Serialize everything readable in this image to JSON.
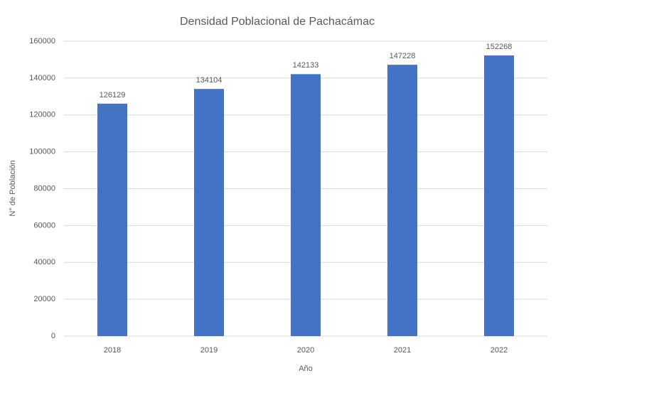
{
  "chart_data": {
    "type": "bar",
    "title": "Densidad Poblacional de Pachacámac",
    "x_label": "Año",
    "y_label": "N° de Población",
    "categories": [
      "2018",
      "2019",
      "2020",
      "2021",
      "2022"
    ],
    "values": [
      126129,
      134104,
      142133,
      147228,
      152268
    ],
    "color": "#4472c4",
    "ylim": [
      0,
      160000
    ],
    "yticks": [
      0,
      20000,
      40000,
      60000,
      80000,
      100000,
      120000,
      140000,
      160000
    ],
    "grid": true
  }
}
